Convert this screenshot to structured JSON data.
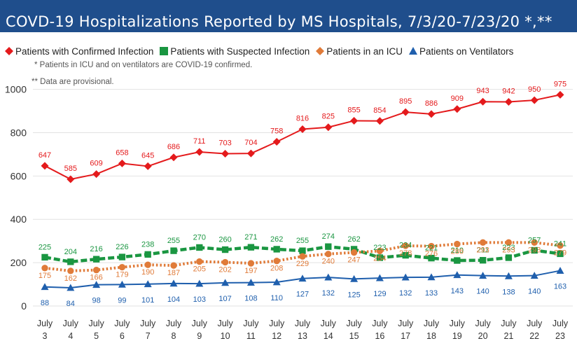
{
  "header": {
    "title": "COVD-19 Hospitalizations Reported by MS Hospitals, 7/3/20-7/23/20 *,**"
  },
  "notes": {
    "icu_vent": "* Patients in ICU and on ventilators are COVID-19 confirmed.",
    "provisional": "** Data are provisional."
  },
  "chart_data": {
    "type": "line",
    "title": "COVD-19 Hospitalizations Reported by MS Hospitals, 7/3/20-7/23/20 *,**",
    "xlabel": "",
    "ylabel": "",
    "ylim": [
      0,
      1000
    ],
    "yticks": [
      "0",
      "200",
      "400",
      "600",
      "800",
      "1000"
    ],
    "grid": true,
    "legend_position": "top",
    "categories": [
      [
        "July",
        "3"
      ],
      [
        "July",
        "4"
      ],
      [
        "July",
        "5"
      ],
      [
        "July",
        "6"
      ],
      [
        "July",
        "7"
      ],
      [
        "July",
        "8"
      ],
      [
        "July",
        "9"
      ],
      [
        "July",
        "10"
      ],
      [
        "July",
        "11"
      ],
      [
        "July",
        "12"
      ],
      [
        "July",
        "13"
      ],
      [
        "July",
        "14"
      ],
      [
        "July",
        "15"
      ],
      [
        "July",
        "16"
      ],
      [
        "July",
        "17"
      ],
      [
        "July",
        "18"
      ],
      [
        "July",
        "19"
      ],
      [
        "July",
        "20"
      ],
      [
        "July",
        "21"
      ],
      [
        "July",
        "22"
      ],
      [
        "July",
        "23"
      ]
    ],
    "series": [
      {
        "name": "Patients with Confirmed Infection",
        "color": "#e41a1c",
        "marker": "diamond",
        "line_style": "solid",
        "values": [
          647,
          585,
          609,
          658,
          645,
          686,
          711,
          703,
          704,
          758,
          816,
          825,
          855,
          854,
          895,
          886,
          909,
          943,
          942,
          950,
          975
        ]
      },
      {
        "name": "Patients with Suspected Infection",
        "color": "#1a9641",
        "marker": "square",
        "line_style": "dashed",
        "values": [
          225,
          204,
          216,
          226,
          238,
          255,
          270,
          260,
          271,
          262,
          255,
          274,
          262,
          223,
          234,
          221,
          210,
          211,
          223,
          257,
          241
        ]
      },
      {
        "name": "Patients in an ICU",
        "color": "#e07b39",
        "marker": "circle",
        "line_style": "dotted",
        "values": [
          175,
          162,
          166,
          179,
          190,
          187,
          205,
          202,
          197,
          208,
          229,
          240,
          247,
          254,
          278,
          276,
          286,
          293,
          293,
          293,
          279
        ]
      },
      {
        "name": "Patients on Ventilators",
        "color": "#1f5fad",
        "marker": "triangle",
        "line_style": "solid",
        "values": [
          88,
          84,
          98,
          99,
          101,
          104,
          103,
          107,
          108,
          110,
          127,
          132,
          125,
          129,
          132,
          133,
          143,
          140,
          138,
          140,
          163
        ]
      }
    ]
  }
}
